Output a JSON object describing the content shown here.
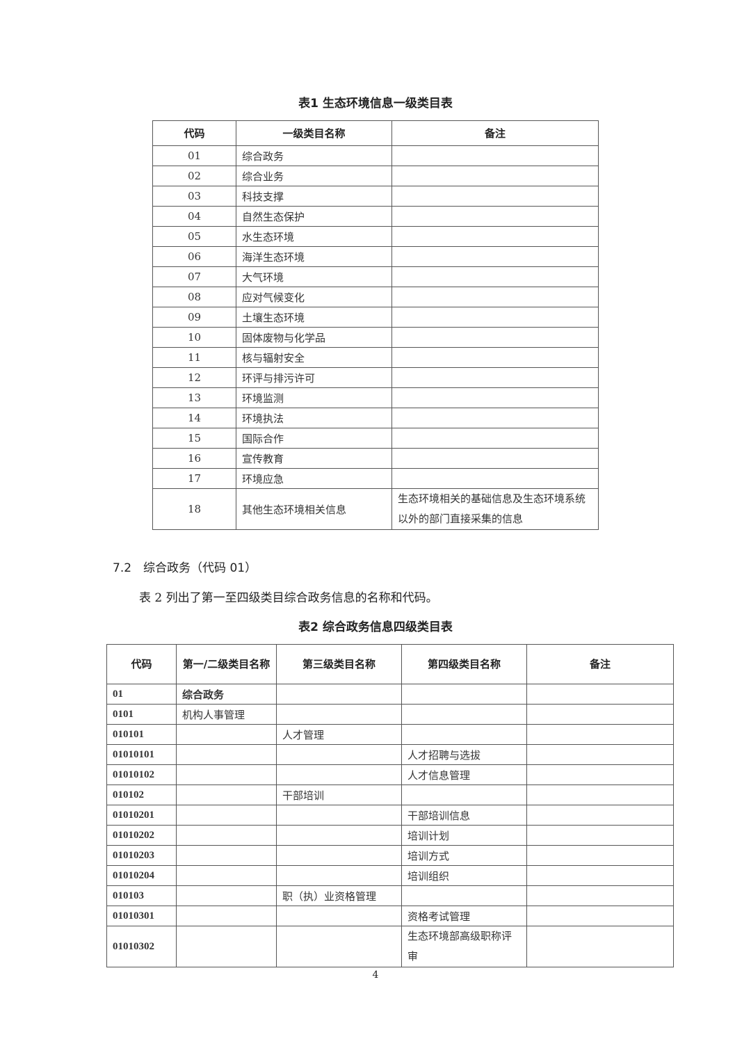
{
  "table1": {
    "caption": "表1  生态环境信息一级类目表",
    "headers": [
      "代码",
      "一级类目名称",
      "备注"
    ],
    "rows": [
      [
        "01",
        "综合政务",
        ""
      ],
      [
        "02",
        "综合业务",
        ""
      ],
      [
        "03",
        "科技支撑",
        ""
      ],
      [
        "04",
        "自然生态保护",
        ""
      ],
      [
        "05",
        "水生态环境",
        ""
      ],
      [
        "06",
        "海洋生态环境",
        ""
      ],
      [
        "07",
        "大气环境",
        ""
      ],
      [
        "08",
        "应对气候变化",
        ""
      ],
      [
        "09",
        "土壤生态环境",
        ""
      ],
      [
        "10",
        "固体废物与化学品",
        ""
      ],
      [
        "11",
        "核与辐射安全",
        ""
      ],
      [
        "12",
        "环评与排污许可",
        ""
      ],
      [
        "13",
        "环境监测",
        ""
      ],
      [
        "14",
        "环境执法",
        ""
      ],
      [
        "15",
        "国际合作",
        ""
      ],
      [
        "16",
        "宣传教育",
        ""
      ],
      [
        "17",
        "环境应急",
        ""
      ],
      [
        "18",
        "其他生态环境相关信息",
        "生态环境相关的基础信息及生态环境系统以外的部门直接采集的信息"
      ]
    ]
  },
  "section": {
    "heading": "7.2　综合政务（代码 01）",
    "paragraph": "表 2 列出了第一至四级类目综合政务信息的名称和代码。"
  },
  "table2": {
    "caption": "表2  综合政务信息四级类目表",
    "headers": [
      "代码",
      "第一/二级类目名称",
      "第三级类目名称",
      "第四级类目名称",
      "备注"
    ],
    "rows": [
      [
        "01",
        "综合政务",
        "",
        "",
        ""
      ],
      [
        "0101",
        "机构人事管理",
        "",
        "",
        ""
      ],
      [
        "010101",
        "",
        "人才管理",
        "",
        ""
      ],
      [
        "01010101",
        "",
        "",
        "人才招聘与选拔",
        ""
      ],
      [
        "01010102",
        "",
        "",
        "人才信息管理",
        ""
      ],
      [
        "010102",
        "",
        "干部培训",
        "",
        ""
      ],
      [
        "01010201",
        "",
        "",
        "干部培训信息",
        ""
      ],
      [
        "01010202",
        "",
        "",
        "培训计划",
        ""
      ],
      [
        "01010203",
        "",
        "",
        "培训方式",
        ""
      ],
      [
        "01010204",
        "",
        "",
        "培训组织",
        ""
      ],
      [
        "010103",
        "",
        "职（执）业资格管理",
        "",
        ""
      ],
      [
        "01010301",
        "",
        "",
        "资格考试管理",
        ""
      ],
      [
        "01010302",
        "",
        "",
        "生态环境部高级职称评审",
        ""
      ]
    ]
  },
  "page_number": "4"
}
